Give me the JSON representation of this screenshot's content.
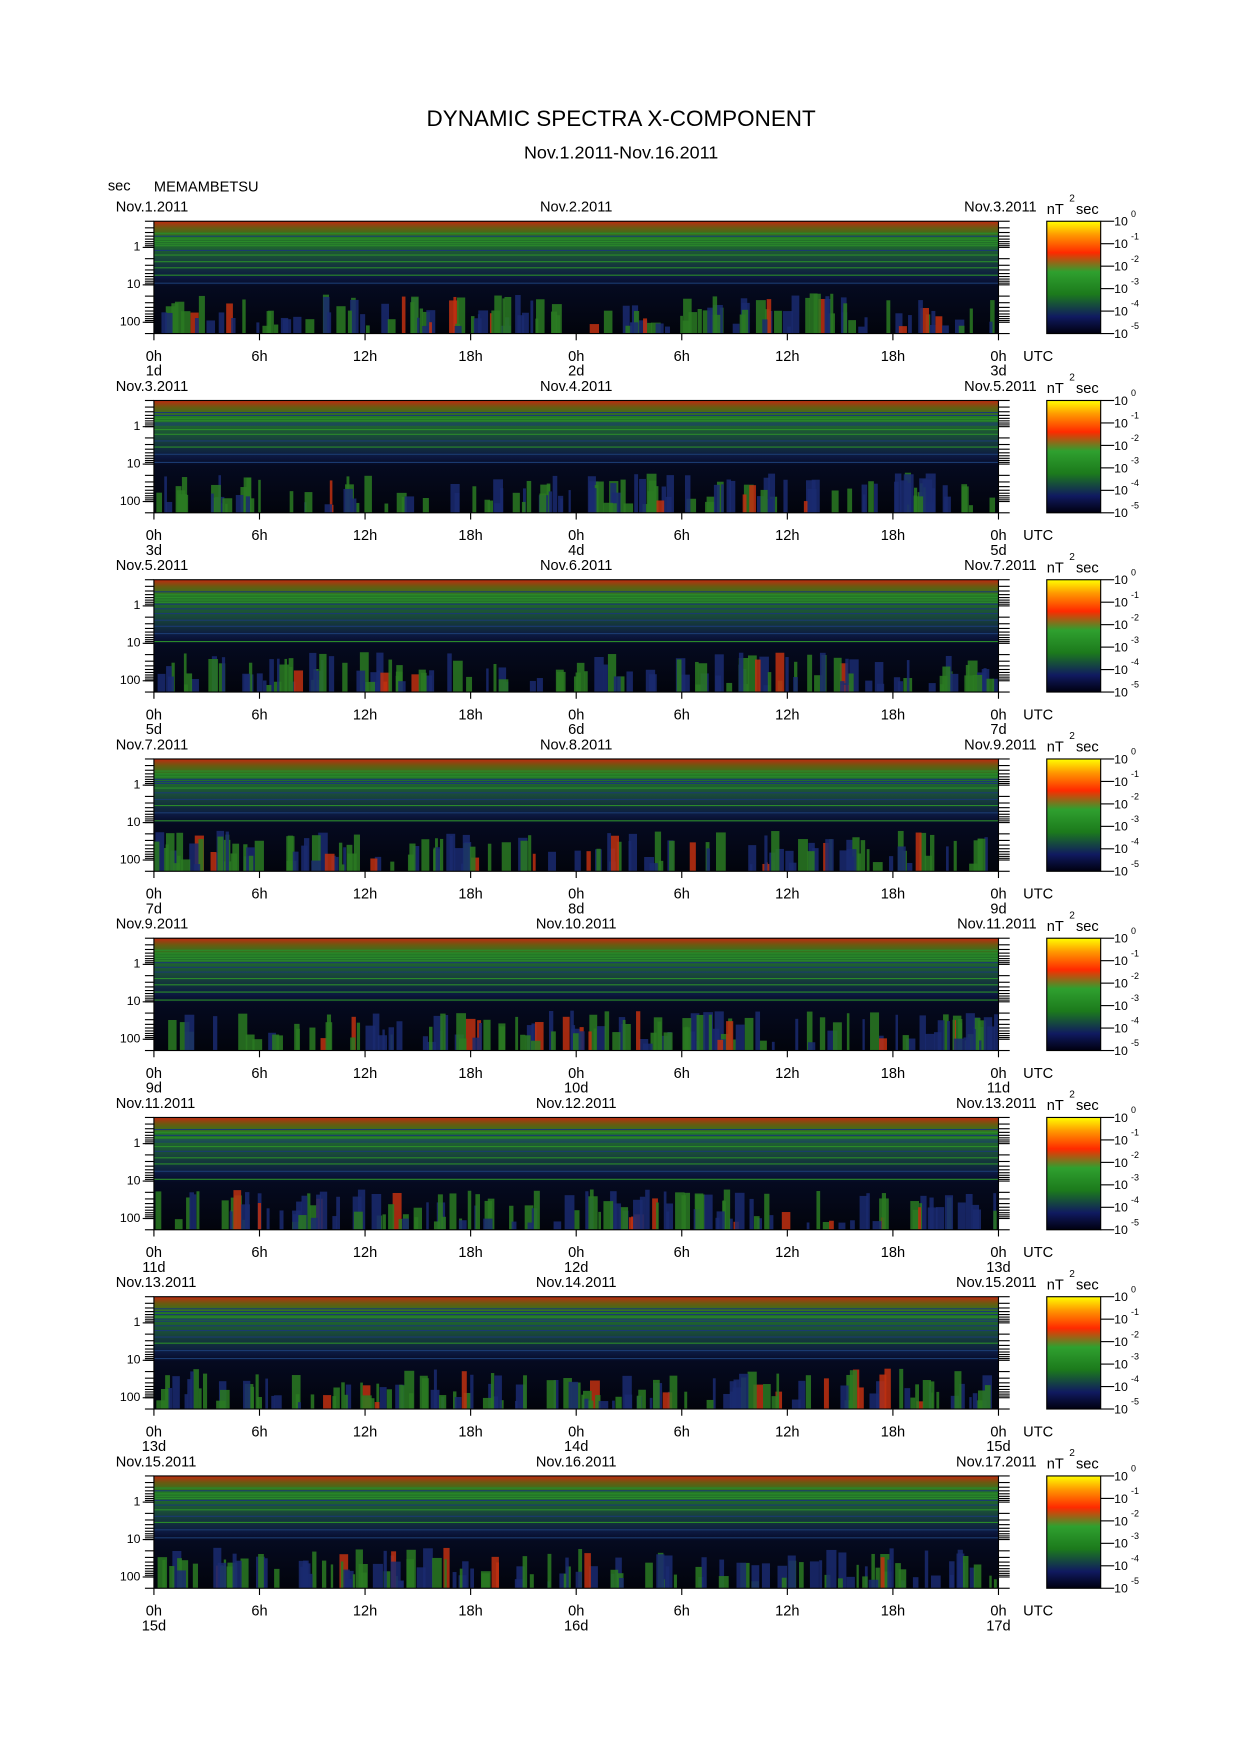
{
  "title": "DYNAMIC SPECTRA X-COMPONENT",
  "subtitle": "Nov.1.2011-Nov.16.2011",
  "y_unit": "sec",
  "station": "MEMAMBETSU",
  "chart_data": [
    {
      "type": "spectrogram",
      "date_ticks": [
        {
          "value": 0,
          "label": "Nov.1.2011"
        },
        {
          "value": 24,
          "label": "Nov.2.2011"
        },
        {
          "value": 48,
          "label": "Nov.3.2011"
        }
      ],
      "day_ticks": [
        {
          "value": 0,
          "label": "1d"
        },
        {
          "value": 24,
          "label": "2d"
        },
        {
          "value": 48,
          "label": "3d"
        }
      ],
      "xlim": [
        0,
        48
      ],
      "xticks": [
        {
          "value": 0,
          "label": "0h"
        },
        {
          "value": 6,
          "label": "6h"
        },
        {
          "value": 12,
          "label": "12h"
        },
        {
          "value": 18,
          "label": "18h"
        },
        {
          "value": 24,
          "label": "0h"
        },
        {
          "value": 30,
          "label": "6h"
        },
        {
          "value": 36,
          "label": "12h"
        },
        {
          "value": 42,
          "label": "18h"
        },
        {
          "value": 48,
          "label": "0h"
        }
      ],
      "x_unit": "UTC",
      "ylim": [
        0.2,
        200
      ],
      "yticks": [
        1,
        10,
        100
      ],
      "log_y": true,
      "colorbar": {
        "label": "nT",
        "label_sup": "2",
        "label_unit": "sec",
        "lim": [
          1e-05,
          1
        ],
        "ticks": [
          {
            "value": 1,
            "label": "10",
            "exponent": "0"
          },
          {
            "value": 0.1,
            "label": "10",
            "exponent": "-1"
          },
          {
            "value": 0.01,
            "label": "10",
            "exponent": "-2"
          },
          {
            "value": 0.001,
            "label": "10",
            "exponent": "-3"
          },
          {
            "value": 0.0001,
            "label": "10",
            "exponent": "-4"
          },
          {
            "value": 1e-05,
            "label": "10",
            "exponent": "-5"
          }
        ]
      }
    },
    {
      "type": "spectrogram",
      "date_ticks": [
        {
          "value": 0,
          "label": "Nov.3.2011"
        },
        {
          "value": 24,
          "label": "Nov.4.2011"
        },
        {
          "value": 48,
          "label": "Nov.5.2011"
        }
      ],
      "day_ticks": [
        {
          "value": 0,
          "label": "3d"
        },
        {
          "value": 24,
          "label": "4d"
        },
        {
          "value": 48,
          "label": "5d"
        }
      ],
      "xlim": [
        0,
        48
      ],
      "xticks": [
        {
          "value": 0,
          "label": "0h"
        },
        {
          "value": 6,
          "label": "6h"
        },
        {
          "value": 12,
          "label": "12h"
        },
        {
          "value": 18,
          "label": "18h"
        },
        {
          "value": 24,
          "label": "0h"
        },
        {
          "value": 30,
          "label": "6h"
        },
        {
          "value": 36,
          "label": "12h"
        },
        {
          "value": 42,
          "label": "18h"
        },
        {
          "value": 48,
          "label": "0h"
        }
      ],
      "x_unit": "UTC",
      "ylim": [
        0.2,
        200
      ],
      "yticks": [
        1,
        10,
        100
      ],
      "log_y": true,
      "colorbar": {
        "label": "nT",
        "label_sup": "2",
        "label_unit": "sec",
        "lim": [
          1e-05,
          1
        ],
        "ticks": [
          {
            "value": 1,
            "label": "10",
            "exponent": "0"
          },
          {
            "value": 0.1,
            "label": "10",
            "exponent": "-1"
          },
          {
            "value": 0.01,
            "label": "10",
            "exponent": "-2"
          },
          {
            "value": 0.001,
            "label": "10",
            "exponent": "-3"
          },
          {
            "value": 0.0001,
            "label": "10",
            "exponent": "-4"
          },
          {
            "value": 1e-05,
            "label": "10",
            "exponent": "-5"
          }
        ]
      }
    },
    {
      "type": "spectrogram",
      "date_ticks": [
        {
          "value": 0,
          "label": "Nov.5.2011"
        },
        {
          "value": 24,
          "label": "Nov.6.2011"
        },
        {
          "value": 48,
          "label": "Nov.7.2011"
        }
      ],
      "day_ticks": [
        {
          "value": 0,
          "label": "5d"
        },
        {
          "value": 24,
          "label": "6d"
        },
        {
          "value": 48,
          "label": "7d"
        }
      ],
      "xlim": [
        0,
        48
      ],
      "xticks": [
        {
          "value": 0,
          "label": "0h"
        },
        {
          "value": 6,
          "label": "6h"
        },
        {
          "value": 12,
          "label": "12h"
        },
        {
          "value": 18,
          "label": "18h"
        },
        {
          "value": 24,
          "label": "0h"
        },
        {
          "value": 30,
          "label": "6h"
        },
        {
          "value": 36,
          "label": "12h"
        },
        {
          "value": 42,
          "label": "18h"
        },
        {
          "value": 48,
          "label": "0h"
        }
      ],
      "x_unit": "UTC",
      "ylim": [
        0.2,
        200
      ],
      "yticks": [
        1,
        10,
        100
      ],
      "log_y": true,
      "colorbar": {
        "label": "nT",
        "label_sup": "2",
        "label_unit": "sec",
        "lim": [
          1e-05,
          1
        ],
        "ticks": [
          {
            "value": 1,
            "label": "10",
            "exponent": "0"
          },
          {
            "value": 0.1,
            "label": "10",
            "exponent": "-1"
          },
          {
            "value": 0.01,
            "label": "10",
            "exponent": "-2"
          },
          {
            "value": 0.001,
            "label": "10",
            "exponent": "-3"
          },
          {
            "value": 0.0001,
            "label": "10",
            "exponent": "-4"
          },
          {
            "value": 1e-05,
            "label": "10",
            "exponent": "-5"
          }
        ]
      }
    },
    {
      "type": "spectrogram",
      "date_ticks": [
        {
          "value": 0,
          "label": "Nov.7.2011"
        },
        {
          "value": 24,
          "label": "Nov.8.2011"
        },
        {
          "value": 48,
          "label": "Nov.9.2011"
        }
      ],
      "day_ticks": [
        {
          "value": 0,
          "label": "7d"
        },
        {
          "value": 24,
          "label": "8d"
        },
        {
          "value": 48,
          "label": "9d"
        }
      ],
      "xlim": [
        0,
        48
      ],
      "xticks": [
        {
          "value": 0,
          "label": "0h"
        },
        {
          "value": 6,
          "label": "6h"
        },
        {
          "value": 12,
          "label": "12h"
        },
        {
          "value": 18,
          "label": "18h"
        },
        {
          "value": 24,
          "label": "0h"
        },
        {
          "value": 30,
          "label": "6h"
        },
        {
          "value": 36,
          "label": "12h"
        },
        {
          "value": 42,
          "label": "18h"
        },
        {
          "value": 48,
          "label": "0h"
        }
      ],
      "x_unit": "UTC",
      "ylim": [
        0.2,
        200
      ],
      "yticks": [
        1,
        10,
        100
      ],
      "log_y": true,
      "colorbar": {
        "label": "nT",
        "label_sup": "2",
        "label_unit": "sec",
        "lim": [
          1e-05,
          1
        ],
        "ticks": [
          {
            "value": 1,
            "label": "10",
            "exponent": "0"
          },
          {
            "value": 0.1,
            "label": "10",
            "exponent": "-1"
          },
          {
            "value": 0.01,
            "label": "10",
            "exponent": "-2"
          },
          {
            "value": 0.001,
            "label": "10",
            "exponent": "-3"
          },
          {
            "value": 0.0001,
            "label": "10",
            "exponent": "-4"
          },
          {
            "value": 1e-05,
            "label": "10",
            "exponent": "-5"
          }
        ]
      }
    },
    {
      "type": "spectrogram",
      "date_ticks": [
        {
          "value": 0,
          "label": "Nov.9.2011"
        },
        {
          "value": 24,
          "label": "Nov.10.2011"
        },
        {
          "value": 48,
          "label": "Nov.11.2011"
        }
      ],
      "day_ticks": [
        {
          "value": 0,
          "label": "9d"
        },
        {
          "value": 24,
          "label": "10d"
        },
        {
          "value": 48,
          "label": "11d"
        }
      ],
      "xlim": [
        0,
        48
      ],
      "xticks": [
        {
          "value": 0,
          "label": "0h"
        },
        {
          "value": 6,
          "label": "6h"
        },
        {
          "value": 12,
          "label": "12h"
        },
        {
          "value": 18,
          "label": "18h"
        },
        {
          "value": 24,
          "label": "0h"
        },
        {
          "value": 30,
          "label": "6h"
        },
        {
          "value": 36,
          "label": "12h"
        },
        {
          "value": 42,
          "label": "18h"
        },
        {
          "value": 48,
          "label": "0h"
        }
      ],
      "x_unit": "UTC",
      "ylim": [
        0.2,
        200
      ],
      "yticks": [
        1,
        10,
        100
      ],
      "log_y": true,
      "colorbar": {
        "label": "nT",
        "label_sup": "2",
        "label_unit": "sec",
        "lim": [
          1e-05,
          1
        ],
        "ticks": [
          {
            "value": 1,
            "label": "10",
            "exponent": "0"
          },
          {
            "value": 0.1,
            "label": "10",
            "exponent": "-1"
          },
          {
            "value": 0.01,
            "label": "10",
            "exponent": "-2"
          },
          {
            "value": 0.001,
            "label": "10",
            "exponent": "-3"
          },
          {
            "value": 0.0001,
            "label": "10",
            "exponent": "-4"
          },
          {
            "value": 1e-05,
            "label": "10",
            "exponent": "-5"
          }
        ]
      }
    },
    {
      "type": "spectrogram",
      "date_ticks": [
        {
          "value": 0,
          "label": "Nov.11.2011"
        },
        {
          "value": 24,
          "label": "Nov.12.2011"
        },
        {
          "value": 48,
          "label": "Nov.13.2011"
        }
      ],
      "day_ticks": [
        {
          "value": 0,
          "label": "11d"
        },
        {
          "value": 24,
          "label": "12d"
        },
        {
          "value": 48,
          "label": "13d"
        }
      ],
      "xlim": [
        0,
        48
      ],
      "xticks": [
        {
          "value": 0,
          "label": "0h"
        },
        {
          "value": 6,
          "label": "6h"
        },
        {
          "value": 12,
          "label": "12h"
        },
        {
          "value": 18,
          "label": "18h"
        },
        {
          "value": 24,
          "label": "0h"
        },
        {
          "value": 30,
          "label": "6h"
        },
        {
          "value": 36,
          "label": "12h"
        },
        {
          "value": 42,
          "label": "18h"
        },
        {
          "value": 48,
          "label": "0h"
        }
      ],
      "x_unit": "UTC",
      "ylim": [
        0.2,
        200
      ],
      "yticks": [
        1,
        10,
        100
      ],
      "log_y": true,
      "colorbar": {
        "label": "nT",
        "label_sup": "2",
        "label_unit": "sec",
        "lim": [
          1e-05,
          1
        ],
        "ticks": [
          {
            "value": 1,
            "label": "10",
            "exponent": "0"
          },
          {
            "value": 0.1,
            "label": "10",
            "exponent": "-1"
          },
          {
            "value": 0.01,
            "label": "10",
            "exponent": "-2"
          },
          {
            "value": 0.001,
            "label": "10",
            "exponent": "-3"
          },
          {
            "value": 0.0001,
            "label": "10",
            "exponent": "-4"
          },
          {
            "value": 1e-05,
            "label": "10",
            "exponent": "-5"
          }
        ]
      }
    },
    {
      "type": "spectrogram",
      "date_ticks": [
        {
          "value": 0,
          "label": "Nov.13.2011"
        },
        {
          "value": 24,
          "label": "Nov.14.2011"
        },
        {
          "value": 48,
          "label": "Nov.15.2011"
        }
      ],
      "day_ticks": [
        {
          "value": 0,
          "label": "13d"
        },
        {
          "value": 24,
          "label": "14d"
        },
        {
          "value": 48,
          "label": "15d"
        }
      ],
      "xlim": [
        0,
        48
      ],
      "xticks": [
        {
          "value": 0,
          "label": "0h"
        },
        {
          "value": 6,
          "label": "6h"
        },
        {
          "value": 12,
          "label": "12h"
        },
        {
          "value": 18,
          "label": "18h"
        },
        {
          "value": 24,
          "label": "0h"
        },
        {
          "value": 30,
          "label": "6h"
        },
        {
          "value": 36,
          "label": "12h"
        },
        {
          "value": 42,
          "label": "18h"
        },
        {
          "value": 48,
          "label": "0h"
        }
      ],
      "x_unit": "UTC",
      "ylim": [
        0.2,
        200
      ],
      "yticks": [
        1,
        10,
        100
      ],
      "log_y": true,
      "colorbar": {
        "label": "nT",
        "label_sup": "2",
        "label_unit": "sec",
        "lim": [
          1e-05,
          1
        ],
        "ticks": [
          {
            "value": 1,
            "label": "10",
            "exponent": "0"
          },
          {
            "value": 0.1,
            "label": "10",
            "exponent": "-1"
          },
          {
            "value": 0.01,
            "label": "10",
            "exponent": "-2"
          },
          {
            "value": 0.001,
            "label": "10",
            "exponent": "-3"
          },
          {
            "value": 0.0001,
            "label": "10",
            "exponent": "-4"
          },
          {
            "value": 1e-05,
            "label": "10",
            "exponent": "-5"
          }
        ]
      }
    },
    {
      "type": "spectrogram",
      "date_ticks": [
        {
          "value": 0,
          "label": "Nov.15.2011"
        },
        {
          "value": 24,
          "label": "Nov.16.2011"
        },
        {
          "value": 48,
          "label": "Nov.17.2011"
        }
      ],
      "day_ticks": [
        {
          "value": 0,
          "label": "15d"
        },
        {
          "value": 24,
          "label": "16d"
        },
        {
          "value": 48,
          "label": "17d"
        }
      ],
      "xlim": [
        0,
        48
      ],
      "xticks": [
        {
          "value": 0,
          "label": "0h"
        },
        {
          "value": 6,
          "label": "6h"
        },
        {
          "value": 12,
          "label": "12h"
        },
        {
          "value": 18,
          "label": "18h"
        },
        {
          "value": 24,
          "label": "0h"
        },
        {
          "value": 30,
          "label": "6h"
        },
        {
          "value": 36,
          "label": "12h"
        },
        {
          "value": 42,
          "label": "18h"
        },
        {
          "value": 48,
          "label": "0h"
        }
      ],
      "x_unit": "UTC",
      "ylim": [
        0.2,
        200
      ],
      "yticks": [
        1,
        10,
        100
      ],
      "log_y": true,
      "colorbar": {
        "label": "nT",
        "label_sup": "2",
        "label_unit": "sec",
        "lim": [
          1e-05,
          1
        ],
        "ticks": [
          {
            "value": 1,
            "label": "10",
            "exponent": "0"
          },
          {
            "value": 0.1,
            "label": "10",
            "exponent": "-1"
          },
          {
            "value": 0.01,
            "label": "10",
            "exponent": "-2"
          },
          {
            "value": 0.001,
            "label": "10",
            "exponent": "-3"
          },
          {
            "value": 0.0001,
            "label": "10",
            "exponent": "-4"
          },
          {
            "value": 1e-05,
            "label": "10",
            "exponent": "-5"
          }
        ]
      }
    }
  ]
}
